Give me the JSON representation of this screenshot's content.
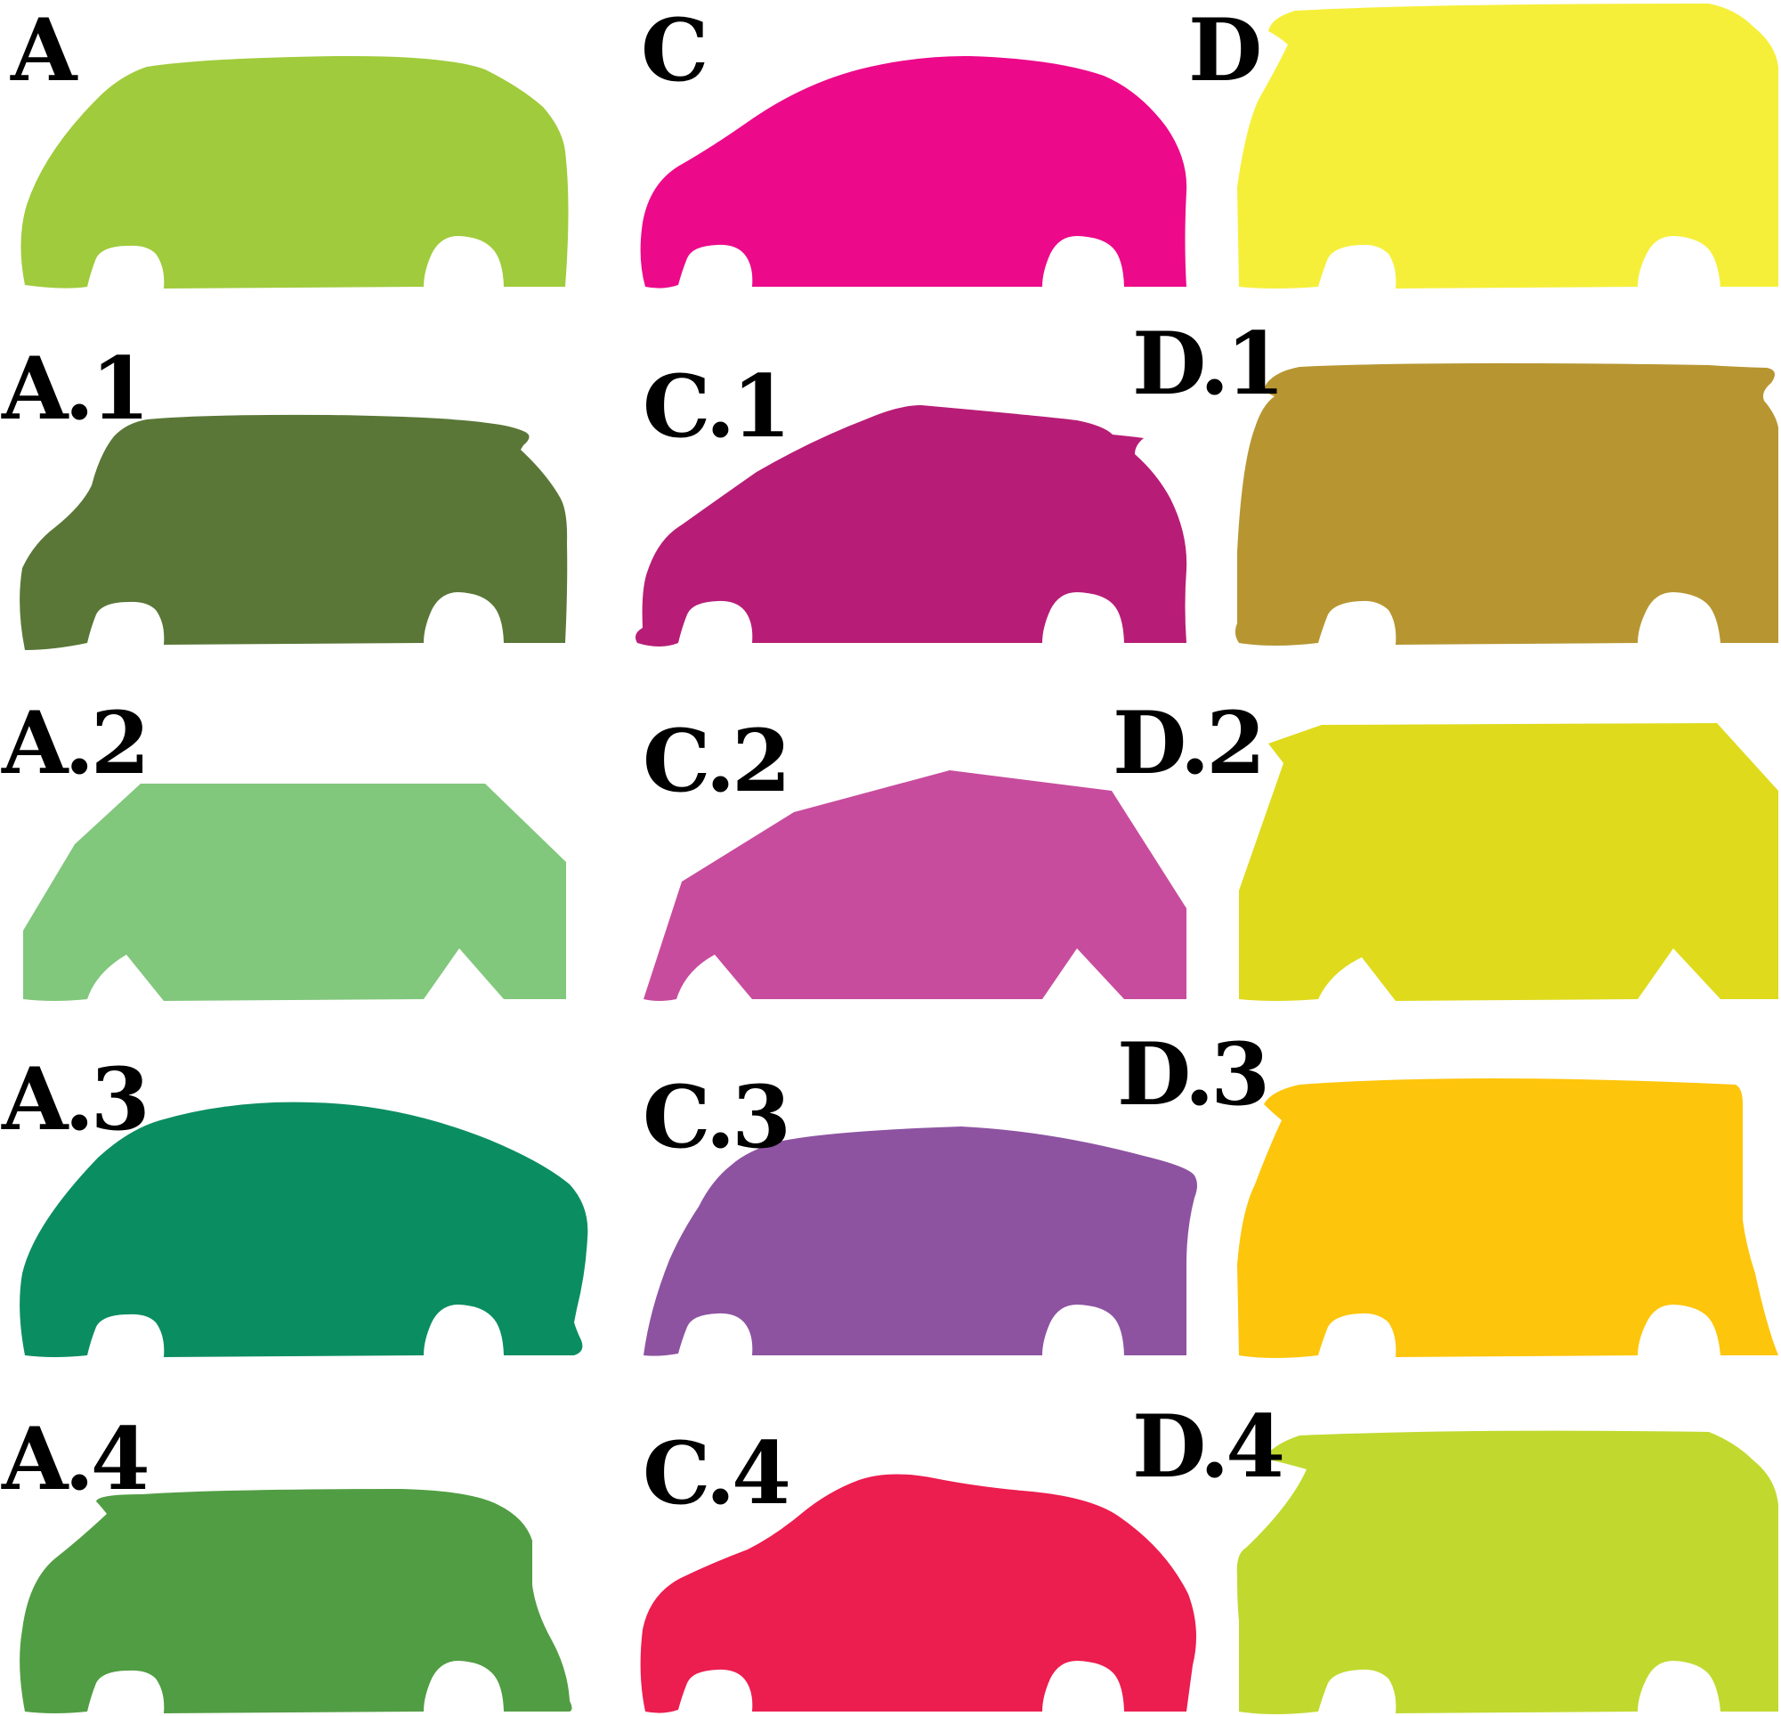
{
  "shapes": [
    {
      "id": "A",
      "label": "A",
      "color": "#a0cb3c"
    },
    {
      "id": "C",
      "label": "C",
      "color": "#ec0a8a"
    },
    {
      "id": "D",
      "label": "D",
      "color": "#f6ef3a"
    },
    {
      "id": "A1",
      "label": "A.1",
      "color": "#5a7737"
    },
    {
      "id": "C1",
      "label": "C.1",
      "color": "#b71d76"
    },
    {
      "id": "D1",
      "label": "D.1",
      "color": "#b79632"
    },
    {
      "id": "A2",
      "label": "A.2",
      "color": "#81c77c"
    },
    {
      "id": "C2",
      "label": "C.2",
      "color": "#c84c9d"
    },
    {
      "id": "D2",
      "label": "D.2",
      "color": "#dfda1c"
    },
    {
      "id": "A3",
      "label": "A.3",
      "color": "#0b8d62"
    },
    {
      "id": "C3",
      "label": "C.3",
      "color": "#8d53a1"
    },
    {
      "id": "D3",
      "label": "D.3",
      "color": "#fdc50c"
    },
    {
      "id": "A4",
      "label": "A.4",
      "color": "#519d43"
    },
    {
      "id": "C4",
      "label": "C.4",
      "color": "#ec1d4f"
    },
    {
      "id": "D4",
      "label": "D.4",
      "color": "#c1d92f"
    }
  ]
}
